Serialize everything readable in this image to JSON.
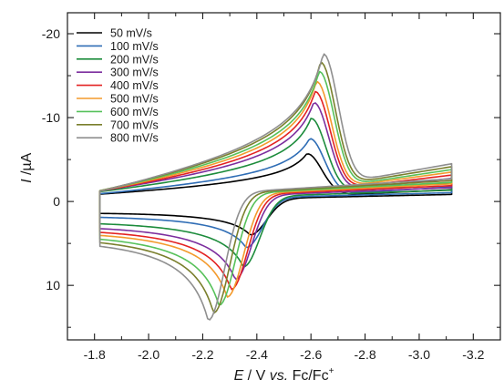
{
  "chart_data": {
    "type": "line",
    "title": "",
    "xlabel": {
      "italic": "E",
      "rest": " / V ",
      "vs": "vs.",
      "tail": " Fc/Fc",
      "sup": "+"
    },
    "ylabel": {
      "italic": "I",
      "rest": " /µA"
    },
    "xlim": [
      -1.7,
      -3.3
    ],
    "ylim": [
      16.5,
      -22.5
    ],
    "x_ticks": [
      -1.8,
      -2.0,
      -2.2,
      -2.4,
      -2.6,
      -2.8,
      -3.0,
      -3.2
    ],
    "x_tick_labels": [
      "-1.8",
      "-2.0",
      "-2.2",
      "-2.4",
      "-2.6",
      "-2.8",
      "-3.0",
      "-3.2"
    ],
    "y_ticks": [
      -20,
      -10,
      0,
      10
    ],
    "y_tick_labels": [
      "-20",
      "-10",
      "0",
      "10"
    ],
    "legend_position": "top-left",
    "x_range": [
      -1.82,
      -3.12
    ],
    "E0": -2.41,
    "series": [
      {
        "name": "50 mV/s",
        "color": "#000000",
        "cathodic_peak_x": -2.585,
        "cathodic_peak_y": -5.7,
        "anodic_peak_x": -2.375,
        "anodic_peak_y": 4.0,
        "start_current": 1.0,
        "end_current": -2.8
      },
      {
        "name": "100 mV/s",
        "color": "#2f6db5",
        "cathodic_peak_x": -2.595,
        "cathodic_peak_y": -7.5,
        "anodic_peak_x": -2.36,
        "anodic_peak_y": 5.5,
        "start_current": 1.8,
        "end_current": -3.5
      },
      {
        "name": "200 mV/s",
        "color": "#1d8c3c",
        "cathodic_peak_x": -2.6,
        "cathodic_peak_y": -9.9,
        "anodic_peak_x": -2.35,
        "anodic_peak_y": 7.8,
        "start_current": 2.5,
        "end_current": -4.5
      },
      {
        "name": "300 mV/s",
        "color": "#7c2e9e",
        "cathodic_peak_x": -2.61,
        "cathodic_peak_y": -11.8,
        "anodic_peak_x": -2.32,
        "anodic_peak_y": 9.3,
        "start_current": 3.2,
        "end_current": -5.5
      },
      {
        "name": "400 mV/s",
        "color": "#e32222",
        "cathodic_peak_x": -2.615,
        "cathodic_peak_y": -13.1,
        "anodic_peak_x": -2.305,
        "anodic_peak_y": 10.5,
        "start_current": 3.8,
        "end_current": -6.3
      },
      {
        "name": "500 mV/s",
        "color": "#f39a2c",
        "cathodic_peak_x": -2.62,
        "cathodic_peak_y": -14.3,
        "anodic_peak_x": -2.29,
        "anodic_peak_y": 11.4,
        "start_current": 4.3,
        "end_current": -7.0
      },
      {
        "name": "600 mV/s",
        "color": "#56c15a",
        "cathodic_peak_x": -2.63,
        "cathodic_peak_y": -15.5,
        "anodic_peak_x": -2.26,
        "anodic_peak_y": 12.4,
        "start_current": 4.8,
        "end_current": -7.6
      },
      {
        "name": "700 mV/s",
        "color": "#7a7f2c",
        "cathodic_peak_x": -2.635,
        "cathodic_peak_y": -16.6,
        "anodic_peak_x": -2.24,
        "anodic_peak_y": 13.3,
        "start_current": 5.3,
        "end_current": -8.3
      },
      {
        "name": "800 mV/s",
        "color": "#8f8f8f",
        "cathodic_peak_x": -2.645,
        "cathodic_peak_y": -17.6,
        "anodic_peak_x": -2.22,
        "anodic_peak_y": 14.2,
        "start_current": 5.8,
        "end_current": -9.0
      }
    ]
  }
}
